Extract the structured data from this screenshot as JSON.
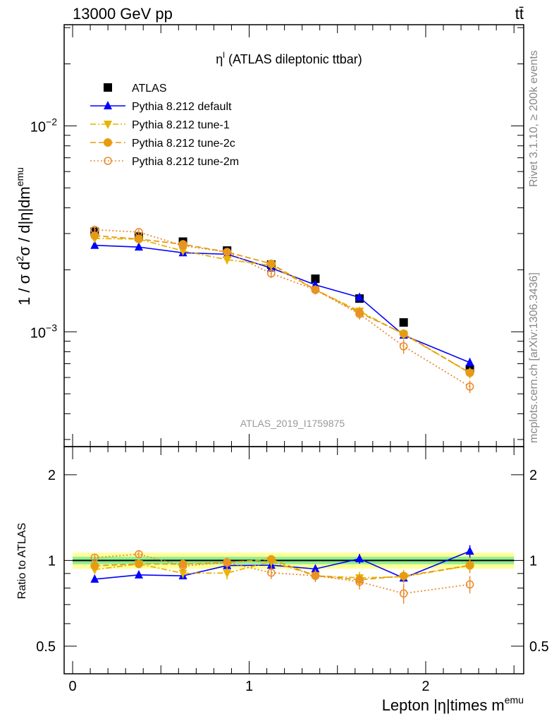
{
  "header": {
    "left": "13000 GeV pp",
    "right": "tt̄"
  },
  "side": {
    "rivet": "Rivet 3.1.10, ≥ 200k events",
    "mcplots": "mcplots.cern.ch [arXiv:1306.3436]"
  },
  "watermark": "ATLAS_2019_I1759875",
  "colors": {
    "atlas": "#000000",
    "default": "#0000ff",
    "tune1": "#e8b400",
    "tune2c": "#e69c10",
    "tune2m": "#ea8c30",
    "band_inner": "#90ee90",
    "band_outer": "#ffff99"
  },
  "chart_data": [
    {
      "type": "line",
      "title_main": "η",
      "title_sup": "l",
      "title_rest": " (ATLAS dileptonic ttbar)",
      "ylabel": {
        "pre": "1 / σ d",
        "sup1": "2",
        "mid": "σ / d|η|dm",
        "sup2": "emu"
      },
      "yscale": "log",
      "ylim": [
        0.000277,
        0.031
      ],
      "yticks": [
        {
          "label": "10",
          "exp": "−2",
          "value": 0.01
        },
        {
          "label": "10",
          "exp": "−3",
          "value": 0.001
        }
      ],
      "x_edges": [
        0,
        0.25,
        0.5,
        0.75,
        1,
        1.25,
        1.5,
        1.75,
        2,
        2.5
      ],
      "x": [
        0.125,
        0.375,
        0.625,
        0.875,
        1.125,
        1.375,
        1.625,
        1.875,
        2.25
      ],
      "legend_position": "top-left",
      "series": [
        {
          "name": "ATLAS",
          "key": "atlas",
          "marker": "square",
          "line": "none",
          "values": [
            0.00306,
            0.0029,
            0.00274,
            0.00248,
            0.00212,
            0.00181,
            0.00145,
            0.00111,
            0.000658
          ],
          "rel_err": [
            0.02,
            0.02,
            0.02,
            0.02,
            0.02,
            0.02,
            0.02,
            0.02,
            0.03
          ]
        },
        {
          "name": "Pythia 8.212 default",
          "key": "default",
          "marker": "triangle-up",
          "line": "solid",
          "values": [
            0.00263,
            0.00258,
            0.00242,
            0.00238,
            0.00204,
            0.00169,
            0.00147,
            0.000963,
            0.000709
          ],
          "rel_err": [
            0.02,
            0.02,
            0.02,
            0.02,
            0.02,
            0.03,
            0.04,
            0.04,
            0.05
          ]
        },
        {
          "name": "Pythia 8.212 tune-1",
          "key": "tune1",
          "marker": "triangle-down",
          "line": "dashdot",
          "values": [
            0.00284,
            0.00282,
            0.00247,
            0.00224,
            0.0021,
            0.0016,
            0.00126,
            0.000973,
            0.000632
          ],
          "rel_err": [
            0.03,
            0.03,
            0.04,
            0.05,
            0.04,
            0.05,
            0.05,
            0.05,
            0.06
          ]
        },
        {
          "name": "Pythia 8.212 tune-2c",
          "key": "tune2c",
          "marker": "circle",
          "line": "dashed",
          "values": [
            0.00293,
            0.00282,
            0.00266,
            0.00244,
            0.00214,
            0.0016,
            0.00124,
            0.000979,
            0.000632
          ],
          "rel_err": [
            0.03,
            0.03,
            0.03,
            0.03,
            0.03,
            0.04,
            0.05,
            0.05,
            0.06
          ]
        },
        {
          "name": "Pythia 8.212 tune-2m",
          "key": "tune2m",
          "marker": "open-circle",
          "line": "dotted",
          "values": [
            0.00313,
            0.00305,
            0.00262,
            0.00244,
            0.00192,
            0.0016,
            0.00122,
            0.00085,
            0.000542
          ],
          "rel_err": [
            0.03,
            0.03,
            0.04,
            0.04,
            0.05,
            0.05,
            0.06,
            0.08,
            0.07
          ]
        }
      ]
    },
    {
      "type": "line",
      "ylabel": "Ratio to ATLAS",
      "yscale": "log",
      "ylim": [
        0.4,
        2.51
      ],
      "yticks": [
        {
          "label": "0.5",
          "value": 0.5
        },
        {
          "label": "1",
          "value": 1
        },
        {
          "label": "2",
          "value": 2
        }
      ],
      "xlabel": {
        "pre": "Lepton |η|times m",
        "sup": "emu"
      },
      "xlim": [
        -0.048,
        2.555
      ],
      "xticks": [
        {
          "label": "0",
          "value": 0
        },
        {
          "label": "1",
          "value": 1
        },
        {
          "label": "2",
          "value": 2
        }
      ],
      "band_inner_rel": 0.03,
      "band_outer_rel": 0.065
    }
  ]
}
